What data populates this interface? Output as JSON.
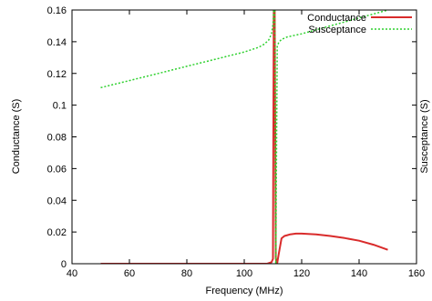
{
  "chart_data": {
    "type": "line",
    "xlabel": "Frequency (MHz)",
    "ylabel": "Conductance (S)",
    "y2label": "Susceptance (S)",
    "xlim": [
      40,
      160
    ],
    "ylim": [
      0,
      0.16
    ],
    "x_ticks": [
      40,
      60,
      80,
      100,
      120,
      140,
      160
    ],
    "y_ticks": [
      0,
      0.02,
      0.04,
      0.06,
      0.08,
      0.1,
      0.12,
      0.14,
      0.16
    ],
    "x_tick_labels": [
      "40",
      "60",
      "80",
      "100",
      "120",
      "140",
      "160"
    ],
    "y_tick_labels": [
      "0",
      "0.02",
      "0.04",
      "0.06",
      "0.08",
      "0.1",
      "0.12",
      "0.14",
      "0.16"
    ],
    "grid": false,
    "legend_position": "top-right",
    "series": [
      {
        "name": "Conductance",
        "color": "#d92b2b",
        "style": "solid",
        "x": [
          50,
          60,
          70,
          80,
          90,
          100,
          108,
          109.5,
          110,
          110.3,
          110.6,
          111,
          111.2,
          111.5,
          112,
          113,
          114,
          115,
          116,
          118,
          120,
          125,
          130,
          135,
          140,
          145,
          150
        ],
        "y": [
          0,
          0,
          0,
          0,
          0,
          0,
          0,
          0.001,
          0.003,
          0.16,
          0.16,
          0.004,
          0.001,
          0.0005,
          0.006,
          0.016,
          0.0175,
          0.018,
          0.0185,
          0.019,
          0.019,
          0.0185,
          0.0175,
          0.0162,
          0.0145,
          0.012,
          0.0088
        ]
      },
      {
        "name": "Susceptance",
        "color": "#2fd12f",
        "style": "dashed",
        "x": [
          50,
          60,
          70,
          80,
          90,
          100,
          105,
          107,
          108.5,
          109.5,
          110,
          110.3,
          110.6,
          111,
          111.5,
          112,
          113,
          115,
          120,
          125,
          130,
          135,
          140,
          145,
          150
        ],
        "y": [
          0.111,
          0.1155,
          0.12,
          0.1245,
          0.129,
          0.1335,
          0.1365,
          0.1385,
          0.141,
          0.145,
          0.151,
          0.16,
          0.16,
          0.0,
          0.137,
          0.1395,
          0.1415,
          0.143,
          0.145,
          0.1475,
          0.15,
          0.1525,
          0.155,
          0.1575,
          0.16
        ]
      }
    ]
  }
}
